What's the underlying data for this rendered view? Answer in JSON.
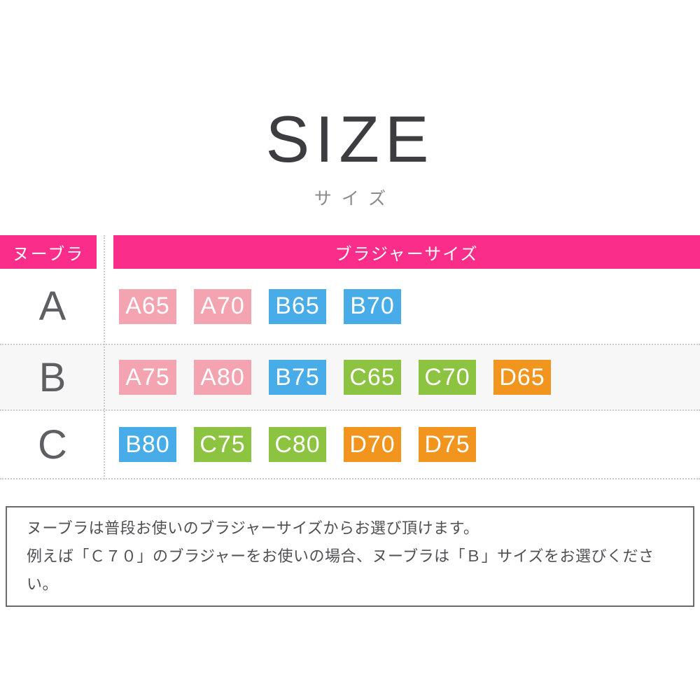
{
  "title": "SIZE",
  "subtitle": "サイズ",
  "colors": {
    "header_bg": "#FA2D8A",
    "pink": "#F4A4B1",
    "blue": "#47ACE8",
    "green": "#8CC441",
    "orange": "#F2951F"
  },
  "table": {
    "header": {
      "left": "ヌーブラ",
      "right": "ブラジャーサイズ"
    },
    "rows": [
      {
        "label": "A",
        "badges": [
          {
            "text": "A65",
            "color": "#F4A4B1"
          },
          {
            "text": "A70",
            "color": "#F4A4B1"
          },
          {
            "text": "B65",
            "color": "#47ACE8"
          },
          {
            "text": "B70",
            "color": "#47ACE8"
          }
        ]
      },
      {
        "label": "B",
        "badges": [
          {
            "text": "A75",
            "color": "#F4A4B1"
          },
          {
            "text": "A80",
            "color": "#F4A4B1"
          },
          {
            "text": "B75",
            "color": "#47ACE8"
          },
          {
            "text": "C65",
            "color": "#8CC441"
          },
          {
            "text": "C70",
            "color": "#8CC441"
          },
          {
            "text": "D65",
            "color": "#F2951F"
          }
        ]
      },
      {
        "label": "C",
        "badges": [
          {
            "text": "B80",
            "color": "#47ACE8"
          },
          {
            "text": "C75",
            "color": "#8CC441"
          },
          {
            "text": "C80",
            "color": "#8CC441"
          },
          {
            "text": "D70",
            "color": "#F2951F"
          },
          {
            "text": "D75",
            "color": "#F2951F"
          }
        ]
      }
    ]
  },
  "note": {
    "line1": "ヌーブラは普段お使いのブラジャーサイズからお選び頂けます。",
    "line2": "例えば「Ｃ７０」のブラジャーをお使いの場合、ヌーブラは「Ｂ」サイズをお選びください。"
  }
}
